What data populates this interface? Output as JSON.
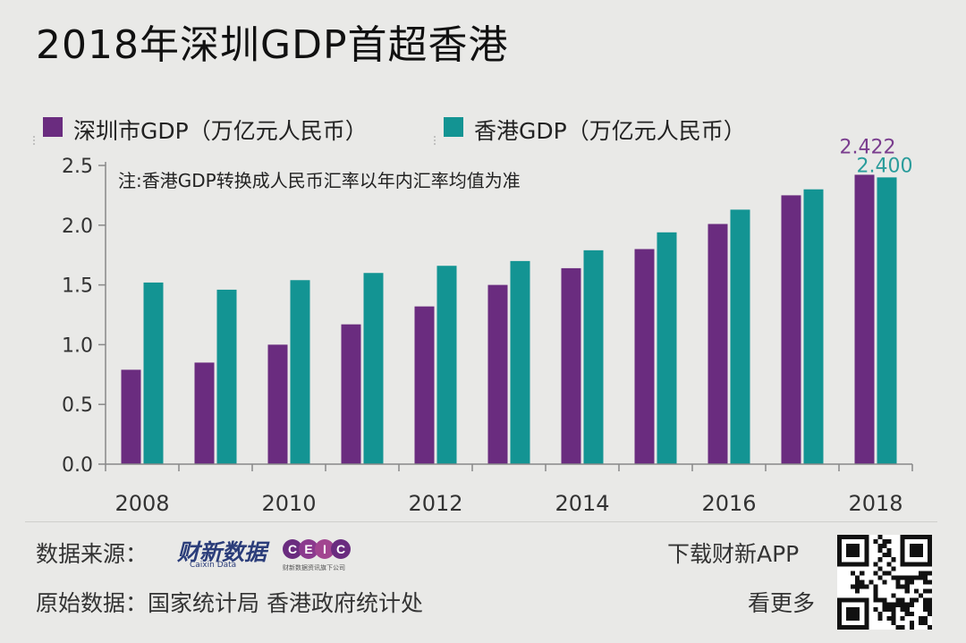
{
  "title": "2018年深圳GDP首超香港",
  "chart_data": {
    "type": "bar",
    "categories": [
      "2008",
      "2009",
      "2010",
      "2011",
      "2012",
      "2013",
      "2014",
      "2015",
      "2016",
      "2017",
      "2018"
    ],
    "x_tick_labels": [
      "2008",
      "2010",
      "2012",
      "2014",
      "2016",
      "2018"
    ],
    "series": [
      {
        "name": "深圳市GDP（万亿元人民币）",
        "color": "#6a2c7f",
        "values": [
          0.79,
          0.85,
          1.0,
          1.17,
          1.32,
          1.5,
          1.64,
          1.8,
          2.01,
          2.25,
          2.422
        ]
      },
      {
        "name": "香港GDP（万亿元人民币）",
        "color": "#139493",
        "values": [
          1.52,
          1.46,
          1.54,
          1.6,
          1.66,
          1.7,
          1.79,
          1.94,
          2.13,
          2.3,
          2.4
        ]
      }
    ],
    "ylim": [
      0,
      2.5
    ],
    "y_ticks": [
      "0.0",
      "0.5",
      "1.0",
      "1.5",
      "2.0",
      "2.5"
    ],
    "note": "注:香港GDP转换成人民币汇率以年内汇率均值为准",
    "annotations": [
      {
        "series": 0,
        "index": 10,
        "text": "2.422",
        "color": "#7a3d8e"
      },
      {
        "series": 1,
        "index": 10,
        "text": "2.400",
        "color": "#2a9c9b"
      }
    ],
    "legend_position": "top-left",
    "grid": false
  },
  "footer": {
    "source_label": "数据来源：",
    "caixin_brand": "财新数据",
    "caixin_sub": "Caixin Data",
    "ceic_brand": "CEIC",
    "ceic_sub": "财新数据资讯旗下公司",
    "raw_label": "原始数据：国家统计局  香港政府统计处",
    "download_label": "下载财新APP",
    "more_label": "看更多"
  }
}
